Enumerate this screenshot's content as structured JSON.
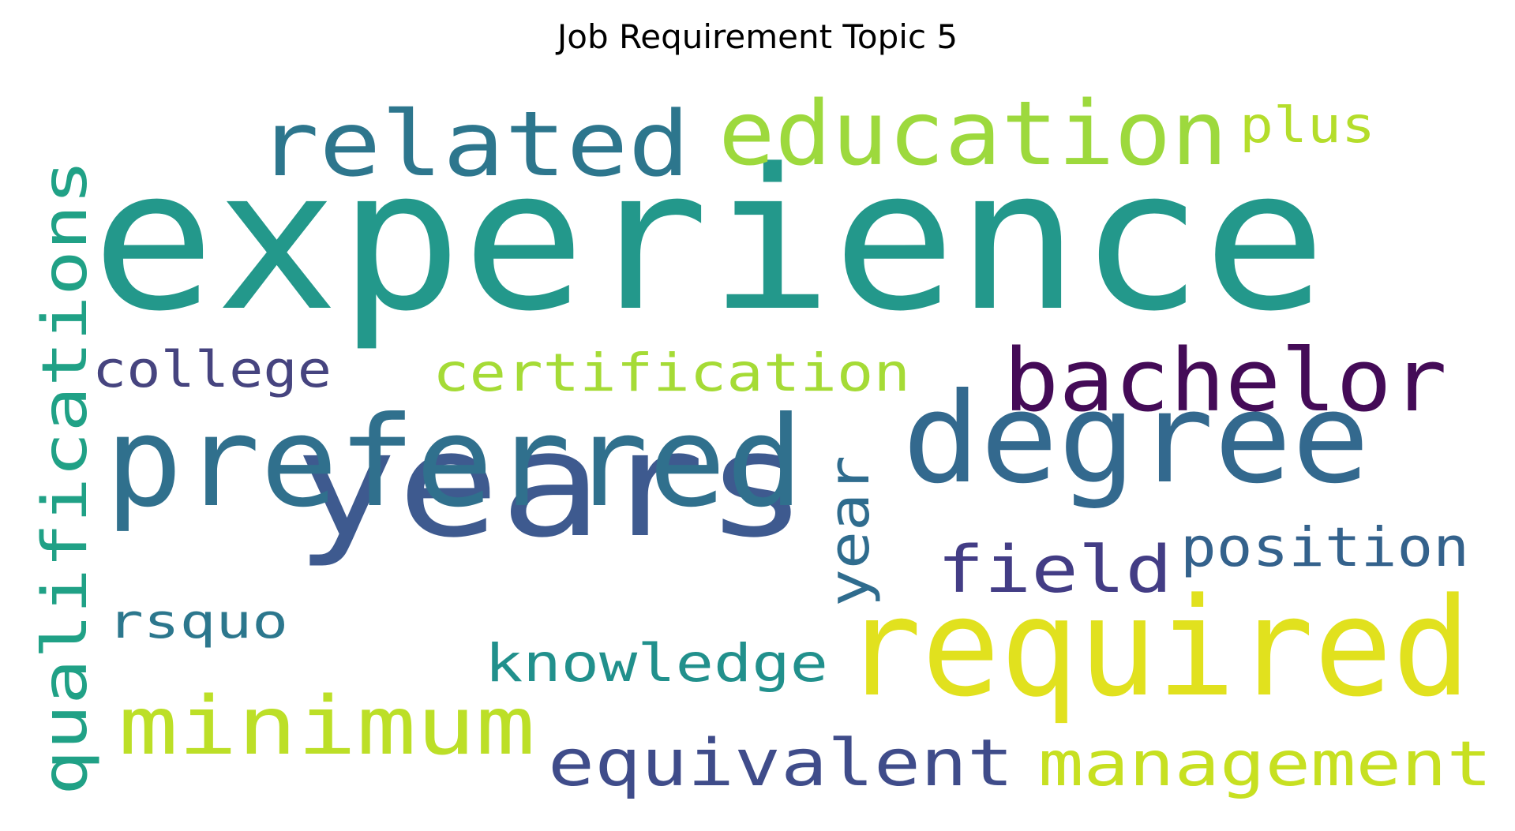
{
  "title": "Job Requirement Topic 5",
  "words": [
    {
      "text": "experience",
      "color": "#23988b"
    },
    {
      "text": "years",
      "color": "#3e5a8f"
    },
    {
      "text": "required",
      "color": "#e1e11e"
    },
    {
      "text": "preferred",
      "color": "#30708d"
    },
    {
      "text": "degree",
      "color": "#33698e"
    },
    {
      "text": "education",
      "color": "#9dd93d"
    },
    {
      "text": "related",
      "color": "#2d768d"
    },
    {
      "text": "bachelor",
      "color": "#440b57"
    },
    {
      "text": "minimum",
      "color": "#bcdf27"
    },
    {
      "text": "qualifications",
      "color": "#20a186"
    },
    {
      "text": "management",
      "color": "#c7e021"
    },
    {
      "text": "equivalent",
      "color": "#3f4c8a"
    },
    {
      "text": "field",
      "color": "#433d85"
    },
    {
      "text": "position",
      "color": "#34628c"
    },
    {
      "text": "year",
      "color": "#2f6c8e"
    },
    {
      "text": "certification",
      "color": "#a5db36"
    },
    {
      "text": "knowledge",
      "color": "#21908c"
    },
    {
      "text": "college",
      "color": "#46447f"
    },
    {
      "text": "plus",
      "color": "#b4dd2b"
    },
    {
      "text": "rsquo",
      "color": "#2c778d"
    }
  ]
}
